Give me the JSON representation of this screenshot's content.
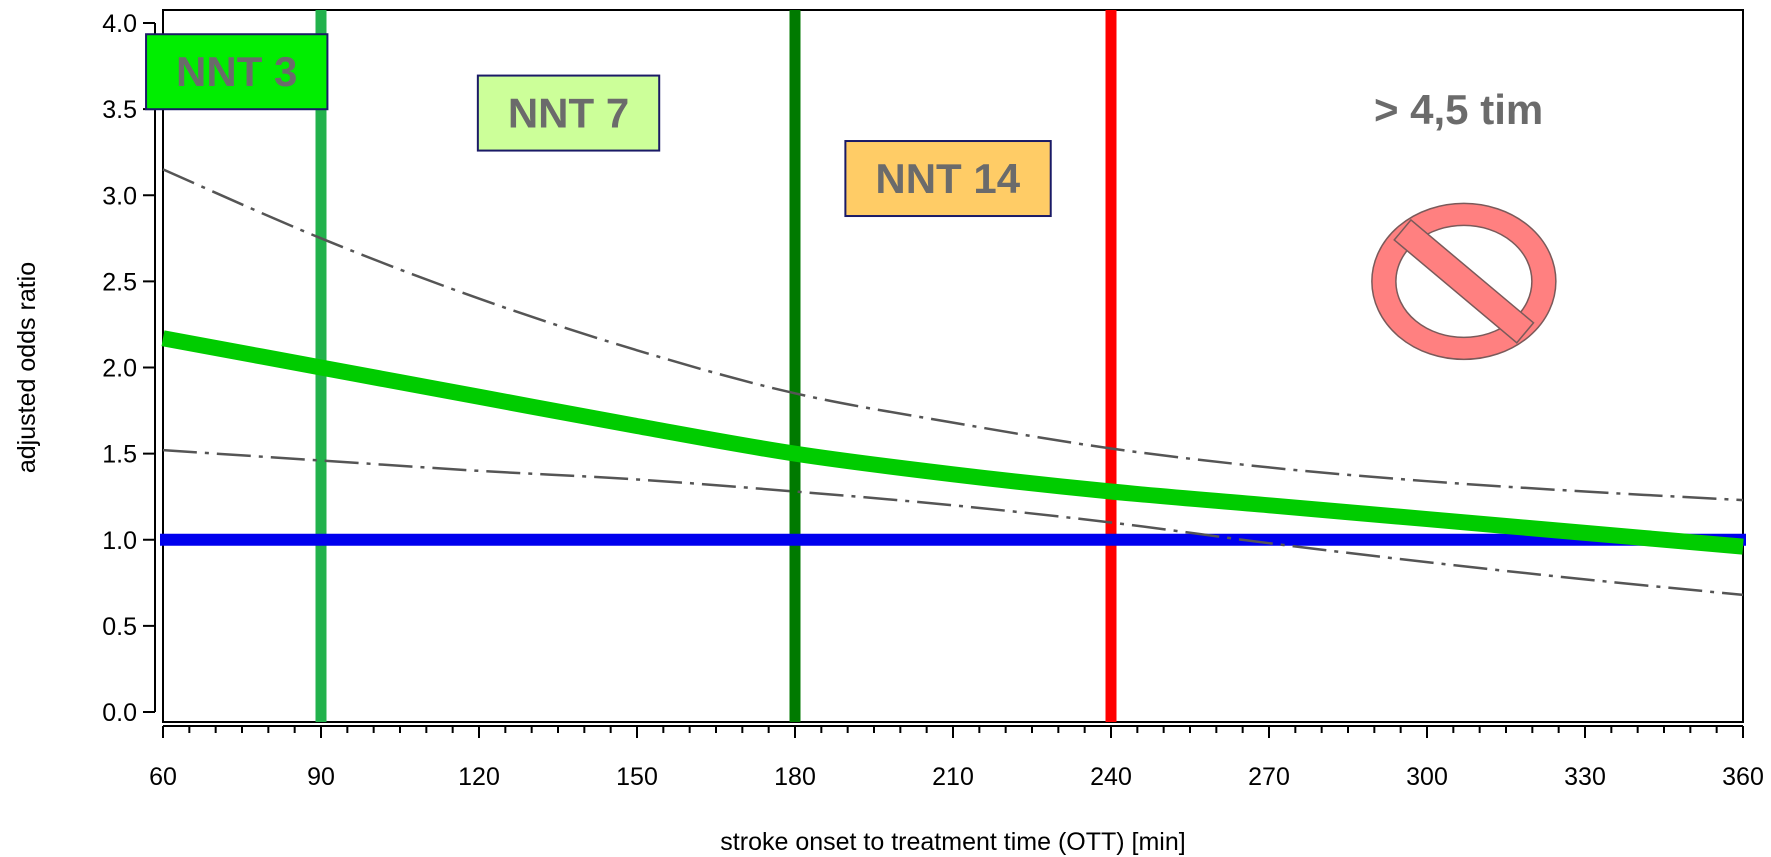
{
  "chart_data": {
    "type": "line",
    "xlabel": "stroke onset to treatment time (OTT) [min]",
    "ylabel": "adjusted odds ratio",
    "xlim": [
      60,
      360
    ],
    "ylim": [
      0,
      4
    ],
    "x_ticks": [
      60,
      90,
      120,
      150,
      180,
      210,
      240,
      270,
      300,
      330,
      360
    ],
    "y_ticks": [
      0.0,
      0.5,
      1.0,
      1.5,
      2.0,
      2.5,
      3.0,
      3.5,
      4.0
    ],
    "y_tick_labels": [
      "0.0",
      "0.5",
      "1.0",
      "1.5",
      "2.0",
      "2.5",
      "3.0",
      "3.5",
      "4.0"
    ],
    "grid": false,
    "series": [
      {
        "role": "estimate",
        "color": "#00cc00",
        "style": "solid-thick",
        "x": [
          60,
          90,
          120,
          150,
          180,
          210,
          240,
          270,
          300,
          330,
          360
        ],
        "y": [
          2.17,
          2.0,
          1.83,
          1.66,
          1.5,
          1.38,
          1.28,
          1.2,
          1.12,
          1.04,
          0.96
        ]
      },
      {
        "role": "upper-ci",
        "color": "#555555",
        "style": "dash-dot",
        "x": [
          60,
          90,
          120,
          150,
          180,
          210,
          240,
          270,
          300,
          330,
          360
        ],
        "y": [
          3.15,
          2.75,
          2.4,
          2.1,
          1.85,
          1.68,
          1.53,
          1.42,
          1.34,
          1.28,
          1.23
        ]
      },
      {
        "role": "lower-ci",
        "color": "#555555",
        "style": "dash-dot",
        "x": [
          60,
          90,
          120,
          150,
          180,
          210,
          240,
          270,
          300,
          330,
          360
        ],
        "y": [
          1.52,
          1.46,
          1.4,
          1.35,
          1.28,
          1.2,
          1.1,
          0.98,
          0.87,
          0.77,
          0.68
        ]
      }
    ],
    "reference_line": {
      "y": 1.0,
      "color": "#0000ee"
    },
    "vertical_lines": [
      {
        "x": 90,
        "color": "#22b24c"
      },
      {
        "x": 180,
        "color": "#007a00"
      },
      {
        "x": 240,
        "color": "#ff0000"
      }
    ],
    "annotations": [
      {
        "text": "NNT 3",
        "x": 74,
        "y": 3.72,
        "fill": "#00ee00"
      },
      {
        "text": "NNT 7",
        "x": 137,
        "y": 3.48,
        "fill": "#ccff99"
      },
      {
        "text": "NNT 14",
        "x": 209,
        "y": 3.1,
        "fill": "#ffcc66"
      },
      {
        "text": "> 4,5 tim",
        "x": 306,
        "y": 3.5,
        "fill": ""
      }
    ],
    "no_entry_icon": {
      "x": 307,
      "y": 2.5,
      "color": "#ff8080"
    }
  }
}
